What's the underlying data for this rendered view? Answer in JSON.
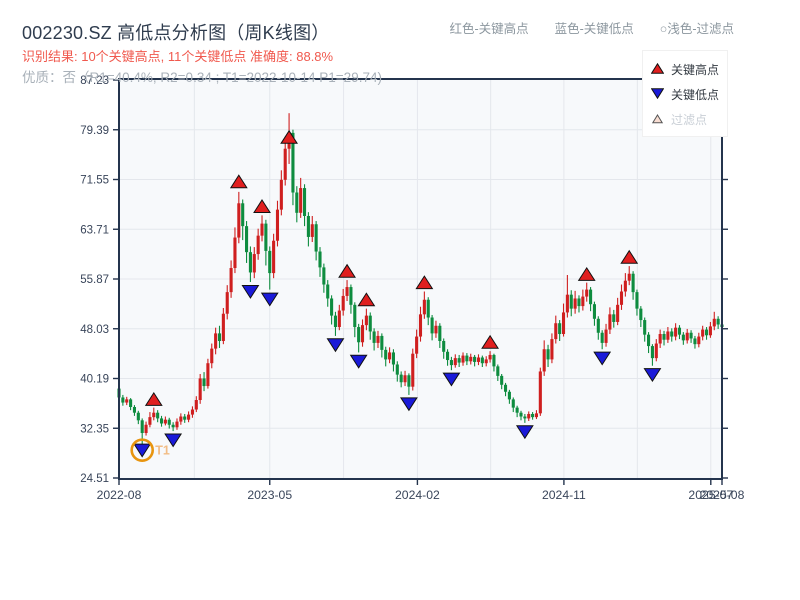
{
  "header": {
    "title": "002230.SZ 高低点分析图（周K线图）",
    "result_line": "识别结果: 10个关键高点, 11个关键低点  准确度: 88.8%",
    "quality_line": "优质：否（R1=40.4%, R2=0.34 ; T1=2022-10-14 P1=29.74)",
    "color_note": {
      "high": "红色-关键高点",
      "low": "蓝色-关键低点",
      "filter": "○浅色-过滤点"
    }
  },
  "chart_legend": {
    "items": [
      {
        "label": "关键高点",
        "marker": "red-up-triangle",
        "enabled": true
      },
      {
        "label": "关键低点",
        "marker": "blue-down-triangle",
        "enabled": true
      },
      {
        "label": "过滤点",
        "marker": "pale-up-triangle",
        "enabled": false
      }
    ]
  },
  "chart_data": {
    "type": "candlestick",
    "instrument": "002230.SZ",
    "period": "weekly",
    "x_axis": {
      "total_weeks": 156,
      "ticks": [
        {
          "label": "2022-08",
          "week": 0,
          "grid": false
        },
        {
          "label": "2023-05",
          "week": 39,
          "grid": true
        },
        {
          "label": "2024-02",
          "week": 77.2,
          "grid": true
        },
        {
          "label": "2024-11",
          "week": 115.1,
          "grid": true
        },
        {
          "label": "2025-07",
          "week": 153.1,
          "grid": true
        },
        {
          "label": "2025-08",
          "week": 156,
          "grid": false
        }
      ]
    },
    "y_axis": {
      "min": 24.51,
      "max": 87.23,
      "ticks": [
        87.23,
        79.39,
        71.55,
        63.71,
        55.87,
        48.03,
        40.19,
        32.35,
        24.51
      ]
    },
    "candles": [
      [
        38.6,
        37.2,
        36.8,
        39.3
      ],
      [
        37.2,
        36.4,
        35.9,
        37.6
      ],
      [
        36.4,
        36.9,
        36.0,
        37.3
      ],
      [
        36.9,
        35.7,
        35.2,
        37.1
      ],
      [
        35.7,
        34.8,
        34.3,
        36.0
      ],
      [
        34.8,
        33.6,
        33.0,
        35.1
      ],
      [
        33.6,
        31.6,
        29.74,
        33.9
      ],
      [
        31.6,
        32.9,
        31.2,
        33.4
      ],
      [
        32.9,
        34.1,
        32.5,
        34.9
      ],
      [
        34.1,
        34.8,
        33.6,
        35.6
      ],
      [
        34.8,
        33.9,
        33.3,
        35.2
      ],
      [
        33.9,
        33.1,
        32.6,
        34.3
      ],
      [
        33.1,
        33.7,
        32.8,
        34.2
      ],
      [
        33.7,
        32.9,
        32.3,
        34.0
      ],
      [
        32.9,
        32.5,
        31.9,
        33.3
      ],
      [
        32.5,
        33.4,
        32.1,
        33.9
      ],
      [
        33.4,
        34.2,
        32.9,
        34.7
      ],
      [
        34.2,
        33.7,
        33.2,
        34.6
      ],
      [
        33.7,
        34.5,
        33.3,
        35.0
      ],
      [
        34.5,
        35.3,
        34.0,
        35.8
      ],
      [
        35.3,
        36.8,
        34.9,
        37.4
      ],
      [
        36.8,
        40.2,
        36.2,
        40.9
      ],
      [
        40.2,
        39.0,
        38.2,
        41.2
      ],
      [
        39.0,
        42.6,
        38.6,
        43.3
      ],
      [
        42.6,
        44.9,
        41.8,
        45.7
      ],
      [
        44.9,
        47.3,
        44.0,
        48.2
      ],
      [
        47.3,
        46.1,
        45.0,
        48.5
      ],
      [
        46.1,
        50.4,
        45.6,
        51.3
      ],
      [
        50.4,
        53.8,
        49.5,
        54.9
      ],
      [
        53.8,
        57.6,
        52.9,
        58.8
      ],
      [
        57.6,
        62.4,
        56.8,
        64.0
      ],
      [
        62.4,
        67.8,
        61.5,
        69.6
      ],
      [
        67.8,
        64.2,
        62.0,
        68.4
      ],
      [
        64.2,
        60.1,
        58.4,
        65.0
      ],
      [
        60.1,
        56.9,
        55.4,
        61.0
      ],
      [
        56.9,
        59.8,
        56.0,
        60.9
      ],
      [
        59.8,
        62.7,
        58.9,
        63.8
      ],
      [
        62.7,
        64.6,
        61.8,
        65.9
      ],
      [
        64.6,
        60.3,
        58.0,
        65.2
      ],
      [
        60.3,
        56.8,
        54.2,
        61.0
      ],
      [
        56.8,
        61.9,
        56.0,
        63.0
      ],
      [
        61.9,
        66.8,
        61.0,
        68.2
      ],
      [
        66.8,
        71.5,
        65.9,
        73.0
      ],
      [
        71.5,
        76.4,
        70.6,
        78.3
      ],
      [
        76.4,
        78.9,
        74.0,
        82.0
      ],
      [
        78.9,
        69.5,
        67.5,
        79.4
      ],
      [
        69.5,
        66.3,
        64.8,
        70.5
      ],
      [
        66.3,
        70.2,
        65.5,
        71.8
      ],
      [
        70.2,
        65.8,
        64.2,
        70.8
      ],
      [
        65.8,
        62.5,
        61.0,
        66.4
      ],
      [
        62.5,
        64.5,
        61.7,
        65.8
      ],
      [
        64.5,
        60.2,
        58.8,
        65.0
      ],
      [
        60.2,
        57.7,
        56.2,
        60.9
      ],
      [
        57.7,
        55.0,
        53.7,
        58.3
      ],
      [
        55.0,
        52.8,
        51.5,
        55.7
      ],
      [
        52.8,
        50.1,
        48.7,
        53.3
      ],
      [
        50.1,
        48.3,
        46.9,
        50.7
      ],
      [
        48.3,
        50.9,
        47.8,
        51.8
      ],
      [
        50.9,
        53.2,
        50.1,
        54.3
      ],
      [
        53.2,
        54.6,
        52.4,
        55.7
      ],
      [
        54.6,
        51.8,
        50.4,
        55.0
      ],
      [
        51.8,
        48.3,
        46.7,
        52.2
      ],
      [
        48.3,
        45.9,
        44.3,
        48.8
      ],
      [
        45.9,
        48.6,
        45.2,
        49.5
      ],
      [
        48.6,
        50.1,
        47.8,
        51.2
      ],
      [
        50.1,
        47.6,
        46.3,
        50.6
      ],
      [
        47.6,
        45.8,
        44.6,
        48.1
      ],
      [
        45.8,
        46.9,
        45.0,
        47.7
      ],
      [
        46.9,
        44.7,
        43.5,
        47.3
      ],
      [
        44.7,
        43.2,
        42.1,
        45.2
      ],
      [
        43.2,
        44.3,
        42.6,
        45.1
      ],
      [
        44.3,
        42.4,
        41.3,
        44.8
      ],
      [
        42.4,
        40.8,
        39.7,
        42.9
      ],
      [
        40.8,
        39.6,
        38.8,
        41.3
      ],
      [
        39.6,
        40.7,
        39.0,
        41.4
      ],
      [
        40.7,
        38.9,
        37.6,
        41.0
      ],
      [
        38.9,
        44.1,
        38.3,
        44.9
      ],
      [
        44.1,
        46.8,
        43.4,
        47.9
      ],
      [
        46.8,
        50.3,
        46.0,
        51.5
      ],
      [
        50.3,
        52.6,
        49.6,
        53.9
      ],
      [
        52.6,
        49.8,
        48.6,
        53.0
      ],
      [
        49.8,
        47.3,
        46.2,
        50.2
      ],
      [
        47.3,
        48.5,
        46.6,
        49.3
      ],
      [
        48.5,
        46.1,
        45.0,
        48.9
      ],
      [
        46.1,
        44.4,
        43.3,
        46.5
      ],
      [
        44.4,
        43.1,
        42.2,
        44.8
      ],
      [
        43.1,
        42.3,
        41.5,
        43.6
      ],
      [
        42.3,
        43.4,
        41.9,
        44.0
      ],
      [
        43.4,
        42.7,
        42.0,
        43.9
      ],
      [
        42.7,
        43.8,
        42.2,
        44.3
      ],
      [
        43.8,
        42.9,
        42.3,
        44.2
      ],
      [
        42.9,
        43.6,
        42.4,
        44.1
      ],
      [
        43.6,
        42.8,
        42.1,
        43.9
      ],
      [
        42.8,
        43.5,
        42.3,
        44.0
      ],
      [
        43.5,
        42.6,
        42.0,
        43.8
      ],
      [
        42.6,
        43.2,
        42.1,
        43.7
      ],
      [
        43.2,
        43.9,
        42.7,
        44.5
      ],
      [
        43.9,
        42.1,
        41.3,
        44.1
      ],
      [
        42.1,
        40.6,
        39.8,
        42.4
      ],
      [
        40.6,
        39.2,
        38.5,
        40.9
      ],
      [
        39.2,
        38.1,
        37.4,
        39.5
      ],
      [
        38.1,
        36.9,
        36.2,
        38.4
      ],
      [
        36.9,
        35.6,
        34.9,
        37.2
      ],
      [
        35.6,
        34.8,
        34.1,
        35.9
      ],
      [
        34.8,
        34.2,
        33.6,
        35.1
      ],
      [
        34.2,
        33.9,
        33.2,
        34.6
      ],
      [
        33.9,
        34.6,
        33.5,
        35.0
      ],
      [
        34.6,
        34.1,
        33.7,
        34.9
      ],
      [
        34.1,
        34.7,
        33.8,
        35.2
      ],
      [
        34.7,
        41.3,
        34.3,
        41.9
      ],
      [
        41.3,
        44.8,
        40.6,
        46.2
      ],
      [
        44.8,
        43.2,
        42.0,
        45.5
      ],
      [
        43.2,
        46.4,
        42.6,
        47.3
      ],
      [
        46.4,
        48.9,
        45.7,
        50.1
      ],
      [
        48.9,
        47.2,
        46.1,
        49.4
      ],
      [
        47.2,
        50.6,
        46.8,
        52.0
      ],
      [
        50.6,
        53.4,
        49.8,
        56.5
      ],
      [
        53.4,
        51.2,
        50.0,
        54.1
      ],
      [
        51.2,
        52.8,
        50.4,
        54.0
      ],
      [
        52.8,
        51.6,
        50.6,
        53.3
      ],
      [
        51.6,
        53.1,
        50.9,
        54.2
      ],
      [
        53.1,
        54.2,
        52.3,
        55.3
      ],
      [
        54.2,
        51.9,
        50.8,
        54.6
      ],
      [
        51.9,
        49.6,
        48.5,
        52.3
      ],
      [
        49.6,
        47.4,
        46.3,
        50.0
      ],
      [
        47.4,
        45.8,
        44.8,
        47.8
      ],
      [
        45.8,
        47.9,
        45.2,
        48.8
      ],
      [
        47.9,
        50.3,
        47.2,
        51.4
      ],
      [
        50.3,
        49.1,
        48.2,
        51.0
      ],
      [
        49.1,
        51.8,
        48.6,
        52.9
      ],
      [
        51.8,
        53.9,
        51.0,
        55.0
      ],
      [
        53.9,
        55.6,
        53.1,
        56.8
      ],
      [
        55.6,
        56.7,
        54.9,
        57.9
      ],
      [
        56.7,
        53.8,
        52.6,
        57.1
      ],
      [
        53.8,
        51.2,
        50.1,
        54.2
      ],
      [
        51.2,
        49.4,
        48.3,
        51.6
      ],
      [
        49.4,
        47.1,
        46.0,
        49.8
      ],
      [
        47.1,
        45.3,
        44.2,
        47.5
      ],
      [
        45.3,
        43.4,
        42.2,
        45.6
      ],
      [
        43.4,
        45.7,
        42.9,
        46.4
      ],
      [
        45.7,
        47.2,
        45.0,
        47.9
      ],
      [
        47.2,
        46.3,
        45.4,
        47.7
      ],
      [
        46.3,
        47.6,
        45.8,
        48.3
      ],
      [
        47.6,
        46.8,
        46.0,
        48.1
      ],
      [
        46.8,
        48.2,
        46.2,
        48.9
      ],
      [
        48.2,
        47.1,
        46.4,
        48.6
      ],
      [
        47.1,
        46.2,
        45.5,
        47.5
      ],
      [
        46.2,
        47.4,
        45.7,
        48.0
      ],
      [
        47.4,
        46.5,
        45.8,
        47.8
      ],
      [
        46.5,
        45.6,
        44.9,
        46.9
      ],
      [
        45.6,
        46.8,
        45.1,
        47.4
      ],
      [
        46.8,
        47.9,
        46.2,
        48.5
      ],
      [
        47.9,
        47.0,
        46.3,
        48.3
      ],
      [
        47.0,
        48.4,
        46.6,
        49.1
      ],
      [
        48.4,
        49.6,
        47.8,
        50.7
      ],
      [
        49.6,
        48.7,
        48.0,
        50.0
      ],
      [
        48.7,
        48.3,
        47.6,
        49.2
      ]
    ],
    "key_high_markers": [
      {
        "week": 9,
        "price": 36.9
      },
      {
        "week": 31,
        "price": 71.2
      },
      {
        "week": 37,
        "price": 67.3
      },
      {
        "week": 44,
        "price": 78.2
      },
      {
        "week": 59,
        "price": 57.1
      },
      {
        "week": 64,
        "price": 52.6
      },
      {
        "week": 79,
        "price": 55.3
      },
      {
        "week": 96,
        "price": 45.9
      },
      {
        "week": 121,
        "price": 56.6
      },
      {
        "week": 132,
        "price": 59.3
      }
    ],
    "key_low_markers": [
      {
        "week": 6,
        "price": 28.9
      },
      {
        "week": 14,
        "price": 30.5
      },
      {
        "week": 34,
        "price": 53.9
      },
      {
        "week": 39,
        "price": 52.7
      },
      {
        "week": 56,
        "price": 45.5
      },
      {
        "week": 62,
        "price": 42.9
      },
      {
        "week": 75,
        "price": 36.2
      },
      {
        "week": 86,
        "price": 40.1
      },
      {
        "week": 105,
        "price": 31.8
      },
      {
        "week": 125,
        "price": 43.4
      },
      {
        "week": 138,
        "price": 40.8
      }
    ],
    "t1_annotation": {
      "week": 6,
      "price": 28.9,
      "label": "T1",
      "point_value": 29.74
    },
    "colors": {
      "bull": "#cf1f1f",
      "bear": "#0e8c3f",
      "key_high": "#e01f1f",
      "key_low": "#1a1ad8",
      "t1_ring": "#e8950f",
      "t1_label": "#f2bd85",
      "grid": "#e4e7ec",
      "axis": "#24344d",
      "plot_bg": "#f7f9fb",
      "tick_label": "#39455a"
    }
  }
}
